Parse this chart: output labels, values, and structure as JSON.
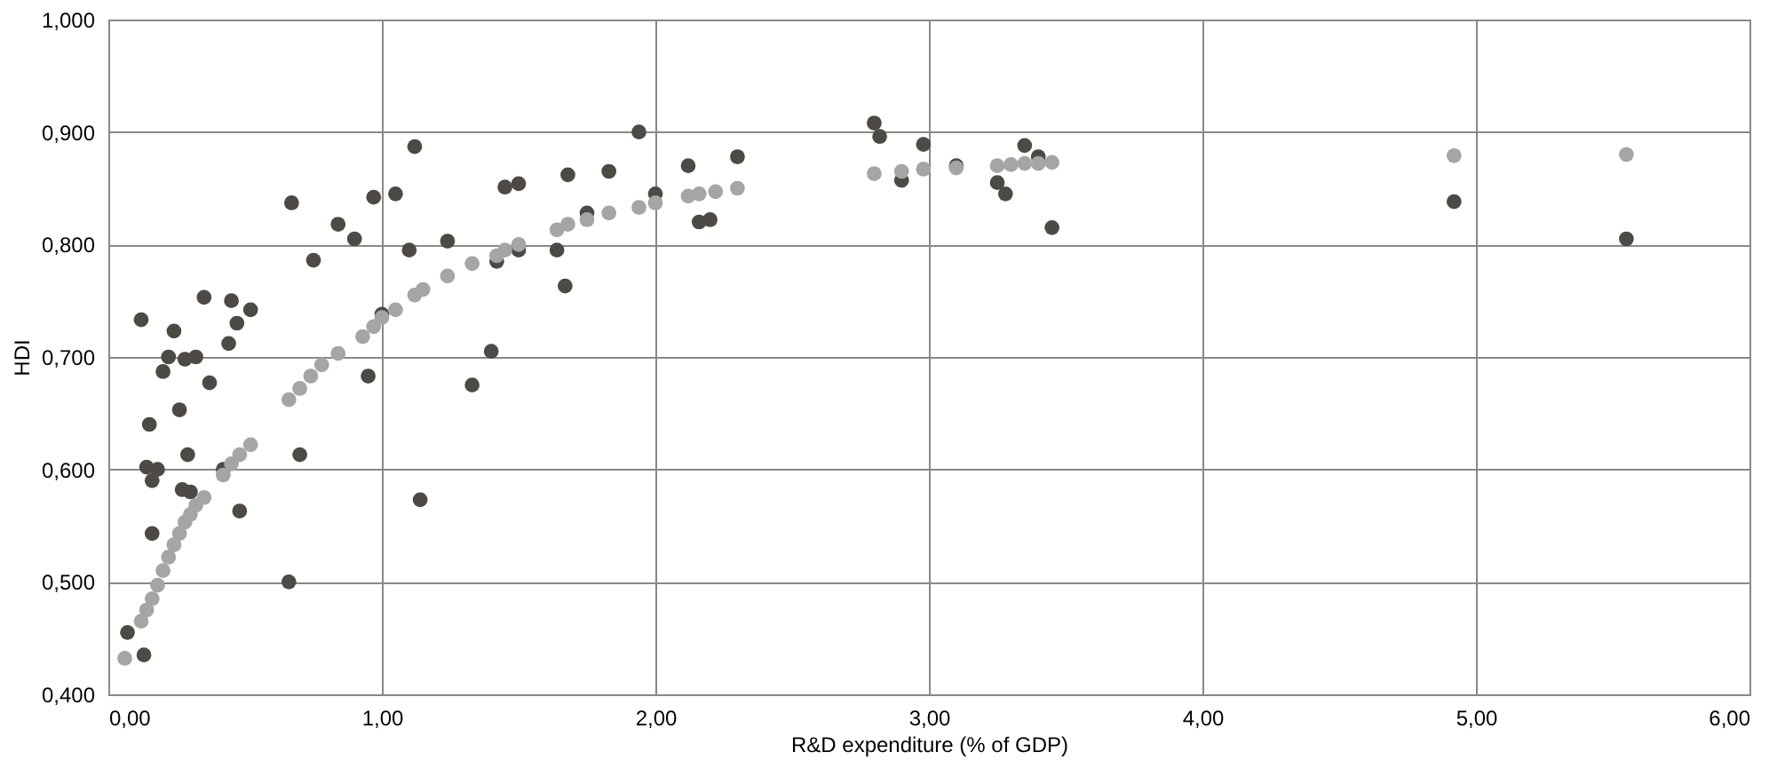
{
  "chart_data": {
    "type": "scatter",
    "xlabel": "R&D expenditure (% of GDP)",
    "ylabel": "HDI",
    "marker": "circle",
    "grid": true,
    "xlim": [
      0,
      6
    ],
    "xticks": [
      {
        "value": 0,
        "label": "0,00"
      },
      {
        "value": 1,
        "label": "1,00"
      },
      {
        "value": 2,
        "label": "2,00"
      },
      {
        "value": 3,
        "label": "3,00"
      },
      {
        "value": 4,
        "label": "4,00"
      },
      {
        "value": 5,
        "label": "5,00"
      },
      {
        "value": 6,
        "label": "6,00"
      }
    ],
    "ylim": [
      0.4,
      1.0
    ],
    "yticks": [
      {
        "value": 0.4,
        "label": "0,400"
      },
      {
        "value": 0.5,
        "label": "0,500"
      },
      {
        "value": 0.6,
        "label": "0,600"
      },
      {
        "value": 0.7,
        "label": "0,700"
      },
      {
        "value": 0.8,
        "label": "0,800"
      },
      {
        "value": 0.9,
        "label": "0,900"
      },
      {
        "value": 1.0,
        "label": "1,000"
      }
    ],
    "series": [
      {
        "color": "#4d4a45",
        "x": [
          0.07,
          0.13,
          0.12,
          0.14,
          0.15,
          0.16,
          0.16,
          0.18,
          0.2,
          0.22,
          0.24,
          0.26,
          0.27,
          0.28,
          0.29,
          0.3,
          0.32,
          0.35,
          0.37,
          0.42,
          0.44,
          0.45,
          0.47,
          0.48,
          0.52,
          0.66,
          0.67,
          0.7,
          0.75,
          0.84,
          0.9,
          0.95,
          0.97,
          1.0,
          1.05,
          1.1,
          1.12,
          1.14,
          1.24,
          1.33,
          1.4,
          1.42,
          1.45,
          1.5,
          1.5,
          1.64,
          1.67,
          1.68,
          1.75,
          1.83,
          1.94,
          2.0,
          2.12,
          2.16,
          2.2,
          2.3,
          2.8,
          2.82,
          2.9,
          2.98,
          3.1,
          3.25,
          3.28,
          3.35,
          3.4,
          3.45,
          4.92,
          5.55
        ],
        "values": [
          0.455,
          0.435,
          0.733,
          0.602,
          0.64,
          0.59,
          0.543,
          0.6,
          0.687,
          0.7,
          0.723,
          0.653,
          0.582,
          0.698,
          0.613,
          0.58,
          0.7,
          0.753,
          0.677,
          0.6,
          0.712,
          0.75,
          0.73,
          0.563,
          0.742,
          0.5,
          0.837,
          0.613,
          0.786,
          0.818,
          0.805,
          0.683,
          0.842,
          0.738,
          0.845,
          0.795,
          0.887,
          0.573,
          0.803,
          0.675,
          0.705,
          0.785,
          0.851,
          0.854,
          0.795,
          0.795,
          0.763,
          0.862,
          0.828,
          0.865,
          0.9,
          0.845,
          0.87,
          0.82,
          0.822,
          0.878,
          0.908,
          0.896,
          0.857,
          0.889,
          0.87,
          0.855,
          0.845,
          0.888,
          0.878,
          0.815,
          0.838,
          0.805
        ]
      },
      {
        "color": "#a5a5a5",
        "x": [
          0.06,
          0.12,
          0.14,
          0.16,
          0.18,
          0.2,
          0.22,
          0.24,
          0.26,
          0.28,
          0.3,
          0.32,
          0.35,
          0.42,
          0.45,
          0.48,
          0.52,
          0.66,
          0.7,
          0.74,
          0.78,
          0.84,
          0.93,
          0.97,
          1.0,
          1.05,
          1.12,
          1.15,
          1.24,
          1.33,
          1.42,
          1.45,
          1.5,
          1.64,
          1.68,
          1.75,
          1.83,
          1.94,
          2.0,
          2.12,
          2.16,
          2.22,
          2.3,
          2.8,
          2.9,
          2.98,
          3.1,
          3.25,
          3.3,
          3.35,
          3.4,
          3.45,
          4.92,
          5.55
        ],
        "values": [
          0.432,
          0.465,
          0.475,
          0.485,
          0.497,
          0.51,
          0.522,
          0.533,
          0.543,
          0.553,
          0.56,
          0.568,
          0.575,
          0.595,
          0.605,
          0.613,
          0.622,
          0.662,
          0.672,
          0.683,
          0.693,
          0.703,
          0.718,
          0.727,
          0.735,
          0.742,
          0.755,
          0.76,
          0.772,
          0.783,
          0.79,
          0.795,
          0.8,
          0.813,
          0.818,
          0.822,
          0.828,
          0.833,
          0.837,
          0.843,
          0.845,
          0.847,
          0.85,
          0.863,
          0.865,
          0.867,
          0.868,
          0.87,
          0.871,
          0.872,
          0.872,
          0.873,
          0.879,
          0.88
        ]
      }
    ]
  }
}
